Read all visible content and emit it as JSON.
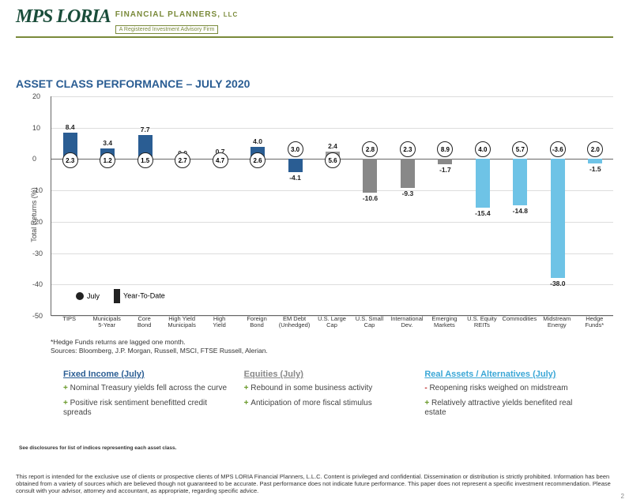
{
  "logo": {
    "main": "MPS LORIA",
    "sub": "FINANCIAL PLANNERS,",
    "llc": "LLC",
    "tag": "A Registered Investment Advisory Firm"
  },
  "title": "ASSET CLASS PERFORMANCE – JULY 2020",
  "chart": {
    "type": "bar",
    "y_axis_label": "Total Returns (%)",
    "ylim": [
      -50,
      20
    ],
    "ytick_step": 10,
    "colors": {
      "fixed_income": "#2a5d93",
      "equities": "#888888",
      "real": "#6ec3e6",
      "us_large_grey": "#9a9a9a",
      "circle_border": "#222222",
      "grid": "#dddddd",
      "axis": "#666666",
      "background": "#ffffff"
    },
    "legend": {
      "july": "July",
      "ytd": "Year-To-Date"
    },
    "categories": [
      {
        "label": "TIPS",
        "july": 2.3,
        "ytd": 8.4,
        "group": "fixed_income"
      },
      {
        "label": "Municipals\n5-Year",
        "july": 1.2,
        "ytd": 3.4,
        "group": "fixed_income"
      },
      {
        "label": "Core\nBond",
        "july": 1.5,
        "ytd": 7.7,
        "group": "fixed_income"
      },
      {
        "label": "High Yield\nMunicipals",
        "july": 2.7,
        "ytd": 0.0,
        "group": "fixed_income"
      },
      {
        "label": "High\nYield",
        "july": 4.7,
        "ytd": 0.7,
        "group": "fixed_income"
      },
      {
        "label": "Foreign\nBond",
        "july": 2.6,
        "ytd": 4.0,
        "group": "fixed_income"
      },
      {
        "label": "EM Debt\n(Unhedged)",
        "july": 3.0,
        "ytd": -4.1,
        "group": "fixed_income"
      },
      {
        "label": "U.S. Large\nCap",
        "july": 5.6,
        "ytd": 2.4,
        "group": "us_large_grey"
      },
      {
        "label": "U.S. Small\nCap",
        "july": 2.8,
        "ytd": -10.6,
        "group": "equities"
      },
      {
        "label": "International\nDev.",
        "july": 2.3,
        "ytd": -9.3,
        "group": "equities"
      },
      {
        "label": "Emerging\nMarkets",
        "july": 8.9,
        "ytd": -1.7,
        "group": "equities"
      },
      {
        "label": "U.S. Equity\nREITs",
        "july": 4.0,
        "ytd": -15.4,
        "group": "real"
      },
      {
        "label": "Commodities",
        "july": 5.7,
        "ytd": -14.8,
        "group": "real"
      },
      {
        "label": "Midstream\nEnergy",
        "july": -3.6,
        "ytd": -38.0,
        "group": "real"
      },
      {
        "label": "Hedge\nFunds*",
        "july": 2.0,
        "ytd": -1.5,
        "group": "real"
      }
    ]
  },
  "footnote": {
    "line1": "*Hedge Funds returns are lagged one month.",
    "line2": "Sources: Bloomberg, J.P. Morgan, Russell, MSCI, FTSE Russell, Alerian."
  },
  "columns": {
    "fixed": {
      "head": "Fixed Income (July)",
      "bullets": [
        {
          "sign": "+",
          "text": "Nominal Treasury yields fell across the curve"
        },
        {
          "sign": "+",
          "text": "Positive risk sentiment benefitted credit spreads"
        }
      ]
    },
    "equities": {
      "head": "Equities (July)",
      "bullets": [
        {
          "sign": "+",
          "text": "Rebound in some business activity"
        },
        {
          "sign": "+",
          "text": "Anticipation of more fiscal stimulus"
        }
      ]
    },
    "real": {
      "head": "Real Assets / Alternatives (July)",
      "bullets": [
        {
          "sign": "-",
          "text": "Reopening risks weighed on midstream"
        },
        {
          "sign": "+",
          "text": "Relatively attractive yields benefited real estate"
        }
      ]
    }
  },
  "disclosure_small": "See disclosures for list of indices representing each asset class.",
  "disclaimer": "This report is intended for the exclusive use of clients or prospective clients of MPS LORIA Financial Planners, L.L.C.  Content is privileged and confidential.  Dissemination or distribution is strictly prohibited.  Information has been obtained from a variety of sources which are believed though not guaranteed to be accurate.  Past performance does not indicate future performance. This paper does not represent a specific investment recommendation.  Please consult with your advisor, attorney and accountant, as appropriate, regarding specific advice.",
  "page_number": "2"
}
